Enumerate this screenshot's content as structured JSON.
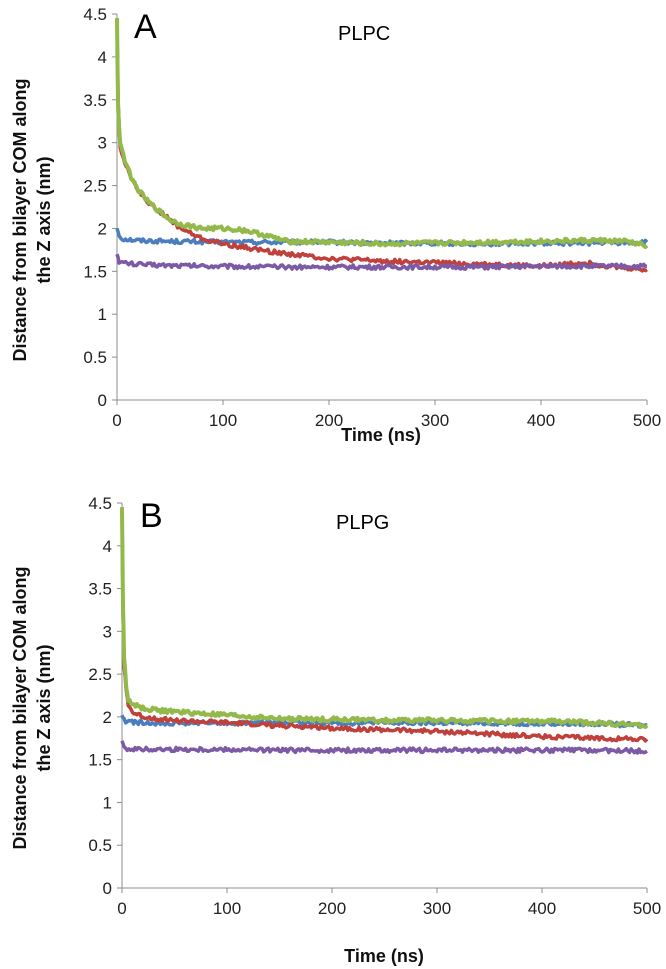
{
  "colors": {
    "blue": "#4a7ebf",
    "red": "#c0403c",
    "green": "#92b94a",
    "purple": "#7d5aa6",
    "axis": "#8c8c8c"
  },
  "chart_data": [
    {
      "type": "line",
      "panel_label": "A",
      "title": "PLPC",
      "xlabel": "Time (ns)",
      "ylabel": "Distance from bilayer COM along the Z axis (nm)",
      "ylabel_lines": [
        "Distance from bilayer COM along",
        "the Z axis (nm)"
      ],
      "xlim": [
        0,
        500
      ],
      "ylim": [
        0,
        4.5
      ],
      "xticks": [
        "0",
        "100",
        "200",
        "300",
        "400",
        "500"
      ],
      "yticks": [
        "0",
        "0.5",
        "1",
        "1.5",
        "2",
        "2.5",
        "3",
        "3.5",
        "4",
        "4.5"
      ],
      "series": [
        {
          "name": "blue",
          "color": "#4a7ebf",
          "x": [
            0,
            2,
            5,
            20,
            50,
            100,
            150,
            200,
            250,
            300,
            350,
            400,
            450,
            500
          ],
          "y": [
            2.0,
            1.92,
            1.88,
            1.86,
            1.85,
            1.84,
            1.84,
            1.84,
            1.83,
            1.83,
            1.82,
            1.83,
            1.83,
            1.84
          ]
        },
        {
          "name": "red",
          "color": "#c0403c",
          "x": [
            0,
            1,
            3,
            6,
            10,
            15,
            20,
            30,
            40,
            50,
            60,
            80,
            100,
            120,
            150,
            180,
            200,
            250,
            300,
            350,
            400,
            440,
            470,
            500
          ],
          "y": [
            4.45,
            3.5,
            2.95,
            2.8,
            2.7,
            2.55,
            2.45,
            2.3,
            2.2,
            2.1,
            2.0,
            1.88,
            1.82,
            1.78,
            1.72,
            1.68,
            1.65,
            1.62,
            1.6,
            1.58,
            1.56,
            1.6,
            1.55,
            1.52
          ]
        },
        {
          "name": "green",
          "color": "#92b94a",
          "x": [
            0,
            1,
            3,
            6,
            10,
            15,
            20,
            30,
            40,
            50,
            60,
            80,
            100,
            120,
            140,
            160,
            200,
            250,
            300,
            350,
            400,
            450,
            480,
            500
          ],
          "y": [
            4.45,
            3.4,
            3.0,
            2.85,
            2.7,
            2.55,
            2.45,
            2.3,
            2.2,
            2.1,
            2.05,
            2.0,
            2.0,
            1.98,
            1.92,
            1.85,
            1.84,
            1.82,
            1.83,
            1.84,
            1.85,
            1.86,
            1.85,
            1.8
          ]
        },
        {
          "name": "purple",
          "color": "#7d5aa6",
          "x": [
            0,
            2,
            5,
            20,
            50,
            100,
            150,
            200,
            250,
            300,
            350,
            400,
            450,
            500
          ],
          "y": [
            1.7,
            1.62,
            1.6,
            1.58,
            1.57,
            1.56,
            1.55,
            1.55,
            1.55,
            1.55,
            1.55,
            1.56,
            1.56,
            1.56
          ]
        }
      ]
    },
    {
      "type": "line",
      "panel_label": "B",
      "title": "PLPG",
      "xlabel": "Time (ns)",
      "ylabel": "Distance from bilayer COM along the Z axis (nm)",
      "ylabel_lines": [
        "Distance from bilayer COM along",
        "the Z axis (nm)"
      ],
      "xlim": [
        0,
        500
      ],
      "ylim": [
        0,
        4.5
      ],
      "xticks": [
        "0",
        "100",
        "200",
        "300",
        "400",
        "500"
      ],
      "yticks": [
        "0",
        "0.5",
        "1",
        "1.5",
        "2",
        "2.5",
        "3",
        "3.5",
        "4",
        "4.5"
      ],
      "series": [
        {
          "name": "blue",
          "color": "#4a7ebf",
          "x": [
            0,
            2,
            5,
            20,
            50,
            100,
            150,
            200,
            250,
            300,
            350,
            400,
            450,
            500
          ],
          "y": [
            2.02,
            1.96,
            1.94,
            1.93,
            1.93,
            1.93,
            1.93,
            1.93,
            1.93,
            1.93,
            1.93,
            1.92,
            1.92,
            1.9
          ]
        },
        {
          "name": "red",
          "color": "#c0403c",
          "x": [
            0,
            1,
            2,
            4,
            6,
            10,
            20,
            40,
            60,
            100,
            150,
            200,
            250,
            300,
            350,
            400,
            450,
            500
          ],
          "y": [
            4.45,
            3.2,
            2.6,
            2.3,
            2.15,
            2.05,
            2.0,
            1.97,
            1.95,
            1.93,
            1.9,
            1.87,
            1.85,
            1.83,
            1.8,
            1.77,
            1.75,
            1.74
          ]
        },
        {
          "name": "green",
          "color": "#92b94a",
          "x": [
            0,
            1,
            2,
            4,
            6,
            10,
            20,
            40,
            60,
            100,
            150,
            200,
            250,
            300,
            350,
            400,
            450,
            500
          ],
          "y": [
            4.45,
            3.3,
            2.7,
            2.35,
            2.2,
            2.15,
            2.1,
            2.07,
            2.05,
            2.02,
            1.98,
            1.97,
            1.96,
            1.96,
            1.95,
            1.95,
            1.93,
            1.9
          ]
        },
        {
          "name": "purple",
          "color": "#7d5aa6",
          "x": [
            0,
            2,
            5,
            20,
            50,
            100,
            150,
            200,
            250,
            300,
            350,
            400,
            450,
            500
          ],
          "y": [
            1.72,
            1.65,
            1.63,
            1.62,
            1.62,
            1.62,
            1.61,
            1.61,
            1.61,
            1.61,
            1.61,
            1.61,
            1.61,
            1.6
          ]
        }
      ]
    }
  ]
}
